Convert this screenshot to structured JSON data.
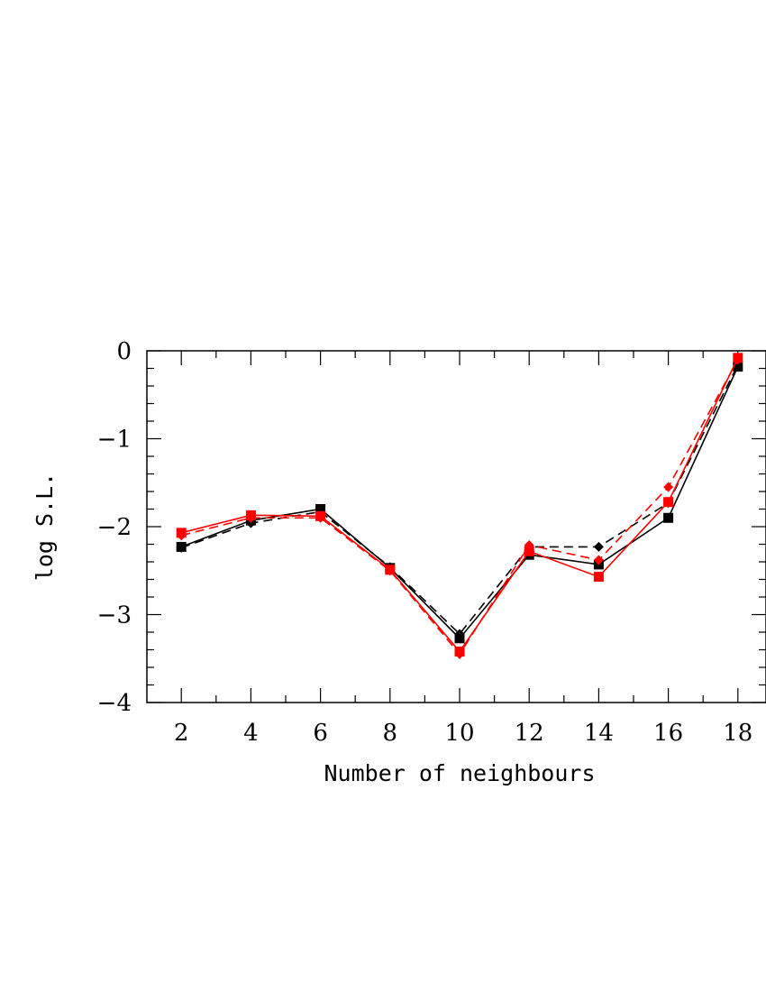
{
  "chart_data": {
    "type": "line",
    "title": "",
    "xlabel": "Number of neighbours",
    "ylabel": "log S.L.",
    "x": [
      2,
      4,
      6,
      8,
      10,
      12,
      14,
      16,
      18
    ],
    "xticks": [
      "2",
      "4",
      "6",
      "8",
      "10",
      "12",
      "14",
      "16",
      "18"
    ],
    "yticks": [
      "0",
      "−1",
      "−2",
      "−3",
      "−4"
    ],
    "xlim": [
      1,
      19
    ],
    "ylim": [
      -4,
      0
    ],
    "grid": false,
    "series": [
      {
        "color": "#000000",
        "dash": "solid",
        "marker": "square",
        "values": [
          -2.23,
          -1.93,
          -1.8,
          -2.47,
          -3.27,
          -2.32,
          -2.43,
          -1.9,
          -0.18
        ]
      },
      {
        "color": "#000000",
        "dash": "dashed",
        "marker": "diamond",
        "values": [
          -2.24,
          -1.96,
          -1.83,
          -2.46,
          -3.22,
          -2.23,
          -2.23,
          -1.73,
          -0.16
        ]
      },
      {
        "color": "#ff0000",
        "dash": "solid",
        "marker": "square",
        "values": [
          -2.07,
          -1.87,
          -1.88,
          -2.49,
          -3.42,
          -2.28,
          -2.57,
          -1.72,
          -0.08
        ]
      },
      {
        "color": "#ff0000",
        "dash": "dashed",
        "marker": "diamond",
        "values": [
          -2.1,
          -1.9,
          -1.9,
          -2.5,
          -3.45,
          -2.21,
          -2.38,
          -1.55,
          -0.1
        ]
      }
    ]
  }
}
